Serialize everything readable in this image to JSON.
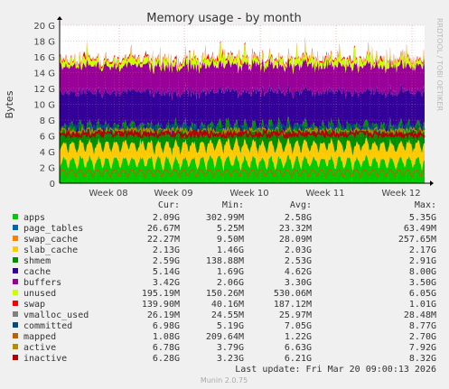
{
  "chart_data": {
    "type": "area",
    "title": "Memory usage - by month",
    "ylabel": "Bytes",
    "xlabel": "",
    "ylim": [
      0,
      20
    ],
    "y_unit": "G",
    "y_ticks": [
      "0",
      "2 G",
      "4 G",
      "6 G",
      "8 G",
      "10 G",
      "12 G",
      "14 G",
      "16 G",
      "18 G",
      "20 G"
    ],
    "x_ticks": [
      "Week 08",
      "Week 09",
      "Week 10",
      "Week 11",
      "Week 12"
    ],
    "grid": true,
    "legend_position": "bottom",
    "columns": [
      "Cur:",
      "Min:",
      "Avg:",
      "Max:"
    ],
    "series": [
      {
        "name": "apps",
        "color": "#00cc00",
        "values": [
          "2.09G",
          "302.99M",
          "2.58G",
          "5.35G"
        ]
      },
      {
        "name": "page_tables",
        "color": "#0066b3",
        "values": [
          "26.67M",
          "5.25M",
          "23.32M",
          "63.49M"
        ]
      },
      {
        "name": "swap_cache",
        "color": "#ff8000",
        "values": [
          "22.27M",
          "9.50M",
          "28.09M",
          "257.65M"
        ]
      },
      {
        "name": "slab_cache",
        "color": "#ffcc00",
        "values": [
          "2.13G",
          "1.46G",
          "2.03G",
          "2.17G"
        ]
      },
      {
        "name": "shmem",
        "color": "#008f00",
        "values": [
          "2.59G",
          "138.88M",
          "2.53G",
          "2.91G"
        ]
      },
      {
        "name": "cache",
        "color": "#330099",
        "values": [
          "5.14G",
          "1.69G",
          "4.62G",
          "8.00G"
        ]
      },
      {
        "name": "buffers",
        "color": "#990099",
        "values": [
          "3.42G",
          "2.06G",
          "3.30G",
          "3.50G"
        ]
      },
      {
        "name": "unused",
        "color": "#ccff00",
        "values": [
          "195.19M",
          "150.26M",
          "530.06M",
          "6.05G"
        ]
      },
      {
        "name": "swap",
        "color": "#ff0000",
        "values": [
          "139.90M",
          "40.16M",
          "187.12M",
          "1.01G"
        ]
      },
      {
        "name": "vmalloc_used",
        "color": "#808080",
        "values": [
          "26.19M",
          "24.55M",
          "25.97M",
          "28.48M"
        ]
      },
      {
        "name": "committed",
        "color": "#004d80",
        "values": [
          "6.98G",
          "5.19G",
          "7.05G",
          "8.77G"
        ]
      },
      {
        "name": "mapped",
        "color": "#bf6000",
        "values": [
          "1.08G",
          "209.64M",
          "1.22G",
          "2.70G"
        ]
      },
      {
        "name": "active",
        "color": "#b38f00",
        "values": [
          "6.78G",
          "3.79G",
          "6.63G",
          "7.92G"
        ]
      },
      {
        "name": "inactive",
        "color": "#b30000",
        "values": [
          "6.28G",
          "3.23G",
          "6.21G",
          "8.32G"
        ]
      }
    ],
    "stacked_order": [
      "apps",
      "page_tables",
      "swap_cache",
      "slab_cache",
      "shmem",
      "cache",
      "buffers",
      "unused",
      "swap"
    ],
    "line_series": [
      "committed",
      "mapped",
      "active",
      "inactive"
    ],
    "approx_stack_levels_G": {
      "apps": 2.6,
      "page_tables": 0.02,
      "swap_cache": 0.03,
      "slab_cache": 2.0,
      "shmem": 2.5,
      "cache": 4.6,
      "buffers": 3.3,
      "unused": 0.5,
      "swap": 0.19
    },
    "last_update": "Last update: Fri Mar 20 09:00:13 2026",
    "watermark": "RRDTOOL / TOBI OETIKER",
    "footer": "Munin 2.0.75"
  }
}
